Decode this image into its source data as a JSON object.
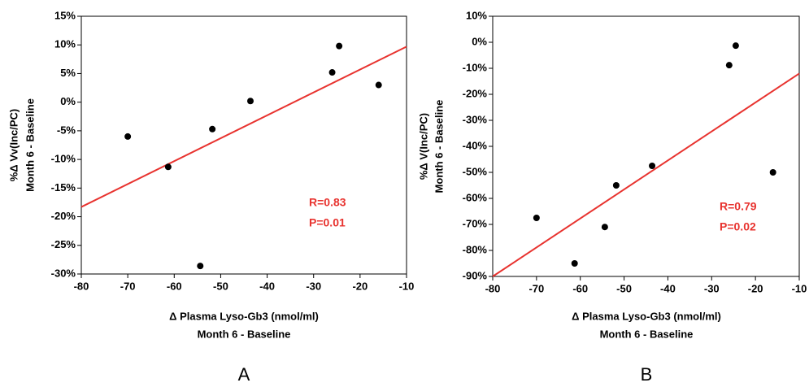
{
  "chart_data": [
    {
      "type": "scatter",
      "panel_label": "A",
      "ylabel": [
        "%Δ  Vv(Inc/PC)",
        "Month 6 - Baseline"
      ],
      "xlabel": [
        "Δ Plasma Lyso-Gb3 (nmol/ml)",
        "Month 6 - Baseline"
      ],
      "x": [
        -70,
        -61.3,
        -54.4,
        -51.8,
        -43.6,
        -26,
        -24.5,
        -16
      ],
      "y": [
        -6,
        -11.3,
        -28.6,
        -4.7,
        0.2,
        5.2,
        9.8,
        3.0
      ],
      "color": "#000000",
      "fit": {
        "x": [
          -80,
          -10
        ],
        "y": [
          -18.3,
          9.7
        ],
        "color": "#e8332f"
      },
      "annotations": [
        "R=0.83",
        "P=0.01"
      ],
      "xlim": [
        -80,
        -10
      ],
      "ylim": [
        -30,
        15
      ],
      "xticks": [
        -80,
        -70,
        -60,
        -50,
        -40,
        -30,
        -20,
        -10
      ],
      "yticks": [
        {
          "value": -30,
          "label": "-30%"
        },
        {
          "value": -25,
          "label": "-25%"
        },
        {
          "value": -20,
          "label": "-20%"
        },
        {
          "value": -15,
          "label": "-15%"
        },
        {
          "value": -10,
          "label": "-10%"
        },
        {
          "value": -5,
          "label": "-5%"
        },
        {
          "value": 0,
          "label": "0%"
        },
        {
          "value": 5,
          "label": "5%"
        },
        {
          "value": 10,
          "label": "10%"
        },
        {
          "value": 15,
          "label": "15%"
        }
      ]
    },
    {
      "type": "scatter",
      "panel_label": "B",
      "ylabel": [
        "%Δ  V(Inc/PC)",
        "Month 6 - Baseline"
      ],
      "xlabel": [
        "Δ Plasma Lyso-Gb3 (nmol/ml)",
        "Month 6 - Baseline"
      ],
      "x": [
        -70,
        -61.3,
        -54.4,
        -51.8,
        -43.6,
        -26,
        -24.5,
        -16
      ],
      "y": [
        -67.5,
        -85,
        -71,
        -55,
        -47.5,
        -8.8,
        -1.3,
        -50
      ],
      "color": "#000000",
      "fit": {
        "x": [
          -80,
          -10
        ],
        "y": [
          -90,
          -12
        ],
        "color": "#e8332f"
      },
      "annotations": [
        "R=0.79",
        "P=0.02"
      ],
      "xlim": [
        -80,
        -10
      ],
      "ylim": [
        -90,
        10
      ],
      "xticks": [
        -80,
        -70,
        -60,
        -50,
        -40,
        -30,
        -20,
        -10
      ],
      "yticks": [
        {
          "value": -90,
          "label": "-90%"
        },
        {
          "value": -80,
          "label": "-80%"
        },
        {
          "value": -70,
          "label": "-70%"
        },
        {
          "value": -60,
          "label": "-60%"
        },
        {
          "value": -50,
          "label": "-50%"
        },
        {
          "value": -40,
          "label": "-40%"
        },
        {
          "value": -30,
          "label": "-30%"
        },
        {
          "value": -20,
          "label": "-20%"
        },
        {
          "value": -10,
          "label": "-10%"
        },
        {
          "value": 0,
          "label": "0%"
        },
        {
          "value": 10,
          "label": "10%"
        }
      ]
    }
  ]
}
